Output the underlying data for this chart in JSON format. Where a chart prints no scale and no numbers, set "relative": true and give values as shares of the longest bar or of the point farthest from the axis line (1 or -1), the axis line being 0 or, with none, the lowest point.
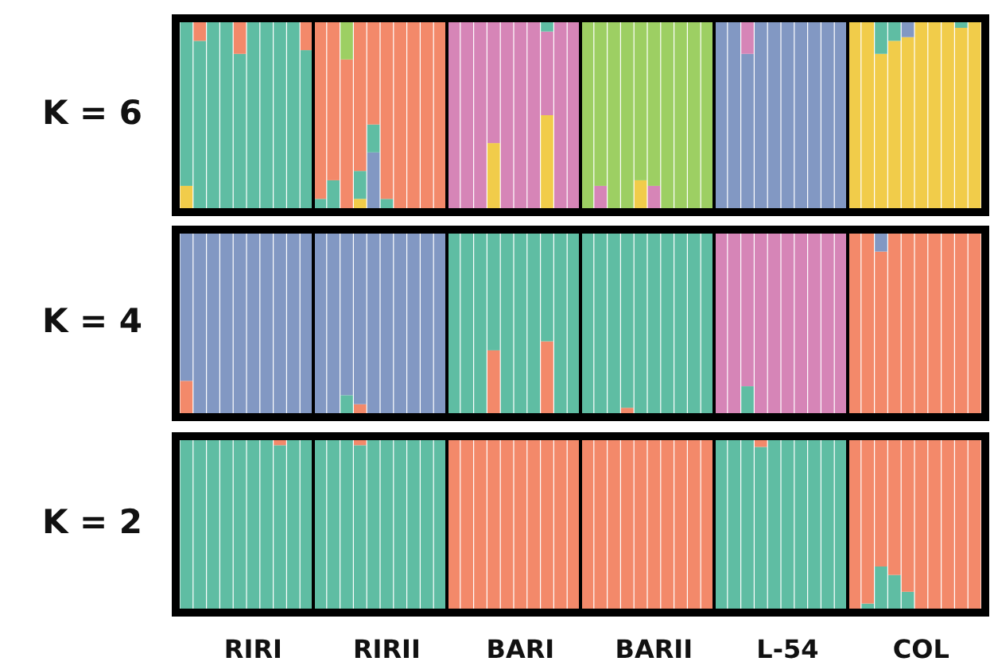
{
  "chart_data": [
    {
      "type": "bar",
      "stacked": true,
      "relative": true,
      "ylabel": "K = 6",
      "tick_labels": false,
      "categories": [
        null,
        null,
        null,
        null,
        null,
        null,
        null,
        null,
        null,
        null,
        null,
        null,
        null,
        null,
        null,
        null,
        null,
        null,
        null,
        null,
        null,
        null,
        null,
        null,
        null,
        null,
        null,
        null,
        null,
        null,
        null,
        null,
        null,
        null,
        null,
        null,
        null,
        null,
        null,
        null,
        null,
        null,
        null,
        null,
        null,
        null,
        null,
        null,
        null,
        null,
        null,
        null,
        null,
        null,
        null,
        null,
        null,
        null,
        null,
        null
      ],
      "series": [
        {
          "color": "#f1cc4a",
          "values": [
            0.12,
            0,
            0,
            0,
            0,
            0,
            0,
            0,
            0,
            0,
            0,
            0,
            0,
            0.05,
            0,
            0,
            0,
            0,
            0,
            0,
            0,
            0,
            0,
            0.35,
            0,
            0,
            0,
            0.5,
            0,
            0,
            0,
            0,
            0,
            0,
            0.15,
            0,
            0,
            0,
            0,
            0,
            0,
            0,
            0,
            0,
            0,
            0,
            0,
            0,
            0,
            0,
            1,
            1,
            0.83,
            0.9,
            0.92,
            1,
            1,
            1,
            0.97,
            1
          ]
        },
        {
          "color": "#8298c3",
          "values": [
            0,
            0,
            0,
            0,
            0,
            0,
            0,
            0,
            0,
            0,
            0,
            0,
            0,
            0,
            0.3,
            0,
            0,
            0,
            0,
            0,
            0,
            0,
            0,
            0,
            0,
            0,
            0,
            0,
            0,
            0,
            0,
            0,
            0,
            0,
            0,
            0,
            0,
            0,
            0,
            0,
            1,
            1,
            0.83,
            1,
            1,
            1,
            1,
            1,
            1,
            1,
            0,
            0,
            0,
            0,
            0.08,
            0,
            0,
            0,
            0,
            0
          ]
        },
        {
          "color": "#d685b7",
          "values": [
            0,
            0,
            0,
            0,
            0,
            0,
            0,
            0,
            0,
            0,
            0,
            0,
            0,
            0,
            0,
            0,
            0,
            0,
            0,
            0,
            1,
            1,
            1,
            0.65,
            1,
            1,
            1,
            0.45,
            1,
            1,
            0,
            0.12,
            0,
            0,
            0,
            0.12,
            0,
            0,
            0,
            0,
            0,
            0,
            0.17,
            0,
            0,
            0,
            0,
            0,
            0,
            0,
            0,
            0,
            0,
            0,
            0,
            0,
            0,
            0,
            0,
            0
          ]
        },
        {
          "color": "#5fbda3",
          "values": [
            0.88,
            0.9,
            1,
            1,
            0.83,
            1,
            1,
            1,
            1,
            0.85,
            0.05,
            0.15,
            0,
            0.15,
            0.15,
            0.05,
            0,
            0,
            0,
            0,
            0,
            0,
            0,
            0,
            0,
            0,
            0,
            0.05,
            0,
            0,
            0,
            0,
            0,
            0,
            0,
            0,
            0,
            0,
            0,
            0,
            0,
            0,
            0,
            0,
            0,
            0,
            0,
            0,
            0,
            0,
            0,
            0,
            0.17,
            0.1,
            0,
            0,
            0,
            0,
            0.03,
            0
          ]
        },
        {
          "color": "#f3896a",
          "values": [
            0,
            0.1,
            0,
            0,
            0.17,
            0,
            0,
            0,
            0,
            0.15,
            0.95,
            0.85,
            0.8,
            0.8,
            0.55,
            0.95,
            1,
            1,
            1,
            1,
            0,
            0,
            0,
            0,
            0,
            0,
            0,
            0,
            0,
            0,
            0,
            0,
            0,
            0,
            0,
            0,
            0,
            0,
            0,
            0,
            0,
            0,
            0,
            0,
            0,
            0,
            0,
            0,
            0,
            0,
            0,
            0,
            0,
            0,
            0,
            0,
            0,
            0,
            0,
            0
          ]
        },
        {
          "color": "#9dcf63",
          "values": [
            0,
            0,
            0,
            0,
            0,
            0,
            0,
            0,
            0,
            0,
            0,
            0,
            0.2,
            0,
            0,
            0,
            0,
            0,
            0,
            0,
            0,
            0,
            0,
            0,
            0,
            0,
            0,
            0,
            0,
            0,
            1,
            0.88,
            1,
            1,
            0.85,
            0.88,
            1,
            1,
            1,
            1,
            0,
            0,
            0,
            0,
            0,
            0,
            0,
            0,
            0,
            0,
            0,
            0,
            0,
            0,
            0,
            0,
            0,
            0,
            0,
            0
          ]
        }
      ]
    },
    {
      "type": "bar",
      "stacked": true,
      "relative": true,
      "ylabel": "K = 4",
      "tick_labels": false,
      "categories": [
        null,
        null,
        null,
        null,
        null,
        null,
        null,
        null,
        null,
        null,
        null,
        null,
        null,
        null,
        null,
        null,
        null,
        null,
        null,
        null,
        null,
        null,
        null,
        null,
        null,
        null,
        null,
        null,
        null,
        null,
        null,
        null,
        null,
        null,
        null,
        null,
        null,
        null,
        null,
        null,
        null,
        null,
        null,
        null,
        null,
        null,
        null,
        null,
        null,
        null,
        null,
        null,
        null,
        null,
        null,
        null,
        null,
        null,
        null,
        null
      ],
      "series": [
        {
          "color": "#f3896a",
          "values": [
            0.18,
            0,
            0,
            0,
            0,
            0,
            0,
            0,
            0,
            0,
            0,
            0,
            0,
            0.05,
            0,
            0,
            0,
            0,
            0,
            0,
            0,
            0,
            0,
            0.35,
            0,
            0,
            0,
            0.4,
            0,
            0,
            0,
            0,
            0,
            0.03,
            0,
            0,
            0,
            0,
            0,
            0,
            0,
            0,
            0,
            0,
            0,
            0,
            0,
            0,
            0,
            0,
            1,
            1,
            0.9,
            1,
            1,
            1,
            1,
            1,
            1,
            1
          ]
        },
        {
          "color": "#5fbda3",
          "values": [
            0,
            0,
            0,
            0,
            0,
            0,
            0,
            0,
            0,
            0,
            0,
            0,
            0.1,
            0,
            0,
            0,
            0,
            0,
            0,
            0,
            1,
            1,
            1,
            0.65,
            1,
            1,
            1,
            0.6,
            1,
            1,
            1,
            1,
            1,
            0.97,
            1,
            1,
            1,
            1,
            1,
            1,
            0,
            0,
            0.15,
            0,
            0,
            0,
            0,
            0,
            0,
            0,
            0,
            0,
            0,
            0,
            0,
            0,
            0,
            0,
            0,
            0
          ]
        },
        {
          "color": "#8298c3",
          "values": [
            0.82,
            1,
            1,
            1,
            1,
            1,
            1,
            1,
            1,
            1,
            1,
            1,
            0.9,
            0.95,
            1,
            1,
            1,
            1,
            1,
            1,
            0,
            0,
            0,
            0,
            0,
            0,
            0,
            0,
            0,
            0,
            0,
            0,
            0,
            0,
            0,
            0,
            0,
            0,
            0,
            0,
            0,
            0,
            0,
            0,
            0,
            0,
            0,
            0,
            0,
            0,
            0,
            0,
            0.1,
            0,
            0,
            0,
            0,
            0,
            0,
            0
          ]
        },
        {
          "color": "#d685b7",
          "values": [
            0,
            0,
            0,
            0,
            0,
            0,
            0,
            0,
            0,
            0,
            0,
            0,
            0,
            0,
            0,
            0,
            0,
            0,
            0,
            0,
            0,
            0,
            0,
            0,
            0,
            0,
            0,
            0,
            0,
            0,
            0,
            0,
            0,
            0,
            0,
            0,
            0,
            0,
            0,
            0,
            1,
            1,
            0.85,
            1,
            1,
            1,
            1,
            1,
            1,
            1,
            0,
            0,
            0,
            0,
            0,
            0,
            0,
            0,
            0,
            0
          ]
        }
      ]
    },
    {
      "type": "bar",
      "stacked": true,
      "relative": true,
      "ylabel": "K = 2",
      "tick_labels": "x",
      "categories": [
        null,
        null,
        null,
        null,
        null,
        "RIRI",
        null,
        null,
        null,
        null,
        null,
        null,
        null,
        null,
        null,
        "RIRII",
        null,
        null,
        null,
        null,
        null,
        null,
        null,
        null,
        null,
        "BARI",
        null,
        null,
        null,
        null,
        null,
        null,
        null,
        null,
        null,
        "BARII",
        null,
        null,
        null,
        null,
        null,
        null,
        null,
        null,
        null,
        "L-54",
        null,
        null,
        null,
        null,
        null,
        null,
        null,
        null,
        null,
        "COL",
        null,
        null,
        null,
        null
      ],
      "series": [
        {
          "color": "#5fbda3",
          "values": [
            1,
            1,
            1,
            1,
            1,
            1,
            1,
            0.97,
            1,
            1,
            1,
            1,
            1,
            0.97,
            1,
            1,
            1,
            1,
            1,
            1,
            0,
            0,
            0,
            0,
            0,
            0,
            0,
            0,
            0,
            0,
            0,
            0,
            0,
            0,
            0,
            0,
            0,
            0,
            0,
            0,
            1,
            1,
            1,
            0.96,
            1,
            1,
            1,
            1,
            1,
            1,
            0,
            0.03,
            0.25,
            0.2,
            0.1,
            0,
            0,
            0,
            0,
            0
          ]
        },
        {
          "color": "#f3896a",
          "values": [
            0,
            0,
            0,
            0,
            0,
            0,
            0,
            0.03,
            0,
            0,
            0,
            0,
            0,
            0.03,
            0,
            0,
            0,
            0,
            0,
            0,
            1,
            1,
            1,
            1,
            1,
            1,
            1,
            1,
            1,
            1,
            1,
            1,
            1,
            1,
            1,
            1,
            1,
            1,
            1,
            1,
            0,
            0,
            0,
            0.04,
            0,
            0,
            0,
            0,
            0,
            0,
            1,
            0.97,
            0.75,
            0.8,
            0.9,
            1,
            1,
            1,
            1,
            1
          ]
        }
      ]
    }
  ]
}
